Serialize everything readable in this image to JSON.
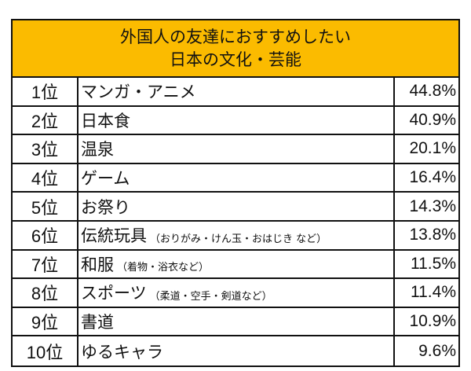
{
  "title": {
    "line1": "外国人の友達におすすめしたい",
    "line2": "日本の文化・芸能"
  },
  "colors": {
    "header_bg": "#fbbb00",
    "border": "#111111"
  },
  "rows": [
    {
      "rank": "1位",
      "item": "マンガ・アニメ",
      "note": "",
      "pct": "44.8%"
    },
    {
      "rank": "2位",
      "item": "日本食",
      "note": "",
      "pct": "40.9%"
    },
    {
      "rank": "3位",
      "item": "温泉",
      "note": "",
      "pct": "20.1%"
    },
    {
      "rank": "4位",
      "item": "ゲーム",
      "note": "",
      "pct": "16.4%"
    },
    {
      "rank": "5位",
      "item": "お祭り",
      "note": "",
      "pct": "14.3%"
    },
    {
      "rank": "6位",
      "item": "伝統玩具",
      "note": "（おりがみ・けん玉・おはじき など）",
      "pct": "13.8%"
    },
    {
      "rank": "7位",
      "item": "和服",
      "note": "（着物・浴衣など）",
      "pct": "11.5%"
    },
    {
      "rank": "8位",
      "item": "スポーツ",
      "note": "（柔道・空手・剣道など）",
      "pct": "11.4%"
    },
    {
      "rank": "9位",
      "item": "書道",
      "note": "",
      "pct": "10.9%"
    },
    {
      "rank": "10位",
      "item": "ゆるキャラ",
      "note": "",
      "pct": "9.6%"
    }
  ]
}
